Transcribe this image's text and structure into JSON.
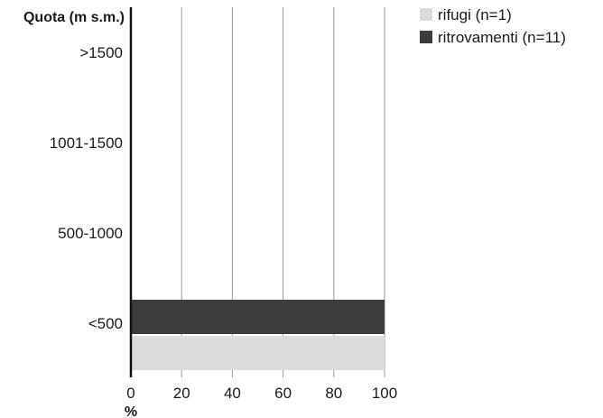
{
  "chart_data": {
    "type": "bar",
    "orientation": "horizontal",
    "ylabel": "Quota (m s.m.)",
    "xlabel": "%",
    "categories": [
      ">1500",
      "1001-1500",
      "500-1000",
      "<500"
    ],
    "series": [
      {
        "name": "rifugi (n=1)",
        "values": [
          0,
          0,
          0,
          100
        ],
        "color": "#dcdcdc"
      },
      {
        "name": "ritrovamenti (n=11)",
        "values": [
          0,
          0,
          0,
          100
        ],
        "color": "#3c3c3c"
      }
    ],
    "xlim": [
      0,
      100
    ],
    "xticks": [
      "0",
      "20",
      "40",
      "60",
      "80",
      "100"
    ],
    "grid": "vertical",
    "legend_position": "top-right"
  }
}
